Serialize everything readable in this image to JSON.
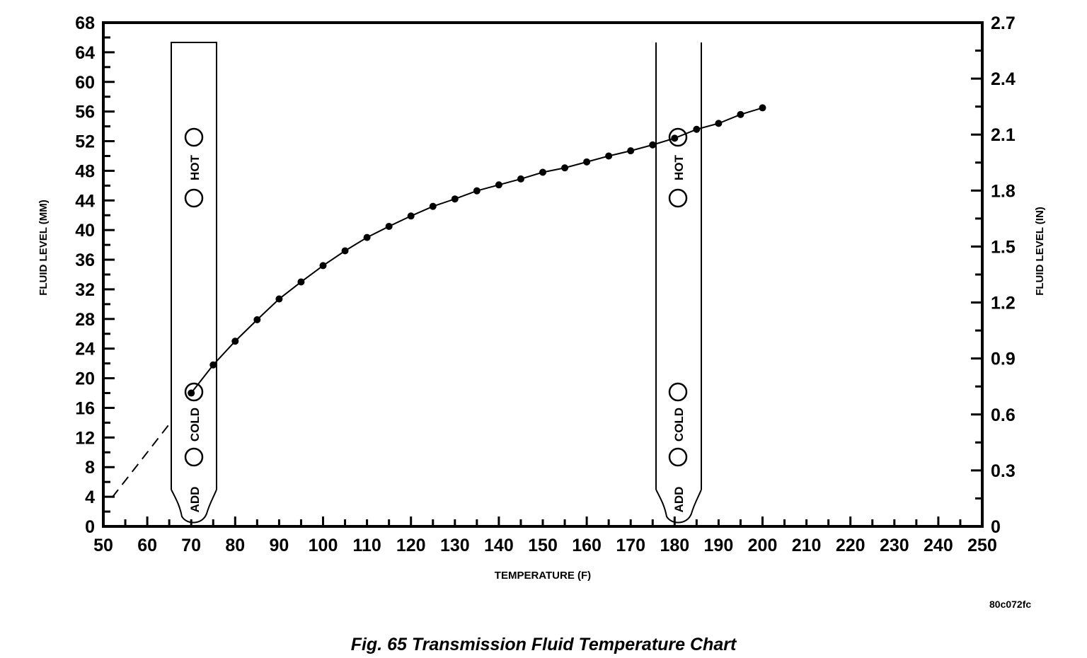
{
  "chart_data": {
    "type": "line",
    "title": "Fig. 65 Transmission Fluid Temperature Chart",
    "figure_id": "80c072fc",
    "xlabel": "TEMPERATURE (F)",
    "ylabel": "FLUID LEVEL (MM)",
    "y2label": "FLUID LEVEL (IN)",
    "xlim": [
      50,
      250
    ],
    "ylim": [
      0,
      68
    ],
    "y2lim": [
      0,
      2.7
    ],
    "xticks": [
      50,
      60,
      70,
      80,
      90,
      100,
      110,
      120,
      130,
      140,
      150,
      160,
      170,
      180,
      190,
      200,
      210,
      220,
      230,
      240,
      250
    ],
    "yticks": [
      0,
      4,
      8,
      12,
      16,
      20,
      24,
      28,
      32,
      36,
      40,
      44,
      48,
      52,
      56,
      60,
      64,
      68
    ],
    "y2ticks": [
      "0",
      "0.3",
      "0.6",
      "0.9",
      "1.2",
      "1.5",
      "1.8",
      "2.1",
      "2.4",
      "2.7"
    ],
    "grid": false,
    "series": [
      {
        "name": "fluid-level",
        "x": [
          70,
          75,
          80,
          85,
          90,
          95,
          100,
          105,
          110,
          115,
          120,
          125,
          130,
          135,
          140,
          145,
          150,
          155,
          160,
          165,
          170,
          175,
          180,
          185,
          190,
          195,
          200
        ],
        "y": [
          18,
          21.8,
          25,
          27.9,
          30.7,
          33,
          35.2,
          37.2,
          39,
          40.5,
          41.9,
          43.2,
          44.2,
          45.3,
          46.1,
          46.9,
          47.8,
          48.4,
          49.2,
          50,
          50.7,
          51.5,
          52.4,
          53.6,
          54.4,
          55.6,
          56.5
        ]
      },
      {
        "name": "extrapolated",
        "style": "dashed",
        "x": [
          52,
          65
        ],
        "y": [
          3.9,
          13.8
        ]
      }
    ],
    "dipstick_labels": {
      "hot": "HOT",
      "cold": "COLD",
      "add": "ADD"
    }
  }
}
